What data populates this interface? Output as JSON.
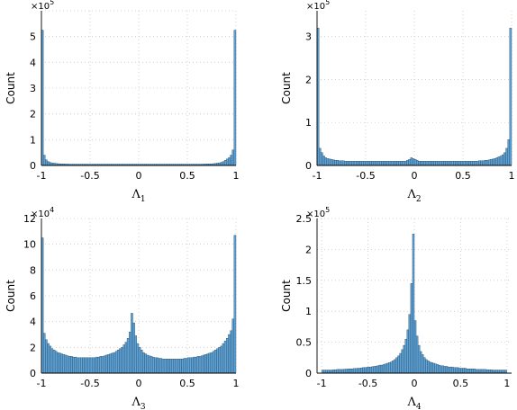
{
  "chart_data": [
    {
      "type": "bar",
      "name": "lambda1",
      "xlabel_main": "Λ",
      "xlabel_sub": "1",
      "ylabel": "Count",
      "multiplier_base": "×10",
      "multiplier_exp": "5",
      "xlim": [
        -1.0,
        1.0
      ],
      "ylim": [
        0,
        6
      ],
      "xticks": [
        -1,
        -0.5,
        0,
        0.5,
        1
      ],
      "xtick_labels": [
        "-1",
        "-0.5",
        "0",
        "0.5",
        "1"
      ],
      "yticks": [
        0,
        1,
        2,
        3,
        4,
        5,
        6
      ],
      "ytick_labels": [
        "0",
        "1",
        "2",
        "3",
        "4",
        "5",
        ""
      ],
      "grid": true,
      "bin_centers": [
        -0.99,
        -0.97,
        -0.95,
        -0.93,
        -0.91,
        -0.89,
        -0.87,
        -0.85,
        -0.83,
        -0.81,
        -0.79,
        -0.77,
        -0.75,
        -0.73,
        -0.71,
        -0.69,
        -0.67,
        -0.65,
        -0.63,
        -0.61,
        -0.59,
        -0.57,
        -0.55,
        -0.53,
        -0.51,
        -0.49,
        -0.47,
        -0.45,
        -0.43,
        -0.41,
        -0.39,
        -0.37,
        -0.35,
        -0.33,
        -0.31,
        -0.29,
        -0.27,
        -0.25,
        -0.23,
        -0.21,
        -0.19,
        -0.17,
        -0.15,
        -0.13,
        -0.11,
        -0.09,
        -0.07,
        -0.05,
        -0.03,
        -0.01,
        0.01,
        0.03,
        0.05,
        0.07,
        0.09,
        0.11,
        0.13,
        0.15,
        0.17,
        0.19,
        0.21,
        0.23,
        0.25,
        0.27,
        0.29,
        0.31,
        0.33,
        0.35,
        0.37,
        0.39,
        0.41,
        0.43,
        0.45,
        0.47,
        0.49,
        0.51,
        0.53,
        0.55,
        0.57,
        0.59,
        0.61,
        0.63,
        0.65,
        0.67,
        0.69,
        0.71,
        0.73,
        0.75,
        0.77,
        0.79,
        0.81,
        0.83,
        0.85,
        0.87,
        0.89,
        0.91,
        0.93,
        0.95,
        0.97,
        0.99
      ],
      "values": [
        5.25,
        0.4,
        0.22,
        0.15,
        0.12,
        0.1,
        0.09,
        0.08,
        0.07,
        0.065,
        0.06,
        0.06,
        0.055,
        0.055,
        0.05,
        0.05,
        0.05,
        0.05,
        0.05,
        0.05,
        0.05,
        0.05,
        0.05,
        0.05,
        0.05,
        0.05,
        0.05,
        0.05,
        0.05,
        0.05,
        0.05,
        0.05,
        0.05,
        0.05,
        0.05,
        0.05,
        0.05,
        0.05,
        0.05,
        0.05,
        0.05,
        0.05,
        0.05,
        0.05,
        0.05,
        0.05,
        0.05,
        0.05,
        0.05,
        0.05,
        0.05,
        0.05,
        0.05,
        0.05,
        0.05,
        0.05,
        0.05,
        0.05,
        0.05,
        0.05,
        0.05,
        0.05,
        0.05,
        0.05,
        0.05,
        0.05,
        0.05,
        0.05,
        0.05,
        0.05,
        0.05,
        0.05,
        0.05,
        0.05,
        0.05,
        0.05,
        0.05,
        0.05,
        0.05,
        0.05,
        0.05,
        0.05,
        0.05,
        0.055,
        0.055,
        0.06,
        0.06,
        0.065,
        0.07,
        0.08,
        0.09,
        0.1,
        0.12,
        0.15,
        0.2,
        0.25,
        0.3,
        0.4,
        0.6,
        5.25
      ]
    },
    {
      "type": "bar",
      "name": "lambda2",
      "xlabel_main": "Λ",
      "xlabel_sub": "2",
      "ylabel": "Count",
      "multiplier_base": "×10",
      "multiplier_exp": "5",
      "xlim": [
        -1.0,
        1.0
      ],
      "ylim": [
        0,
        3.6
      ],
      "xticks": [
        -1,
        -0.5,
        0,
        0.5,
        1
      ],
      "xtick_labels": [
        "-1",
        "-0.5",
        "0",
        "0.5",
        "1"
      ],
      "yticks": [
        0,
        1,
        2,
        3
      ],
      "ytick_labels": [
        "0",
        "1",
        "2",
        "3"
      ],
      "grid": true,
      "bin_centers": [
        -0.99,
        -0.97,
        -0.95,
        -0.93,
        -0.91,
        -0.89,
        -0.87,
        -0.85,
        -0.83,
        -0.81,
        -0.79,
        -0.77,
        -0.75,
        -0.73,
        -0.71,
        -0.69,
        -0.67,
        -0.65,
        -0.63,
        -0.61,
        -0.59,
        -0.57,
        -0.55,
        -0.53,
        -0.51,
        -0.49,
        -0.47,
        -0.45,
        -0.43,
        -0.41,
        -0.39,
        -0.37,
        -0.35,
        -0.33,
        -0.31,
        -0.29,
        -0.27,
        -0.25,
        -0.23,
        -0.21,
        -0.19,
        -0.17,
        -0.15,
        -0.13,
        -0.11,
        -0.09,
        -0.07,
        -0.05,
        -0.03,
        -0.01,
        0.01,
        0.03,
        0.05,
        0.07,
        0.09,
        0.11,
        0.13,
        0.15,
        0.17,
        0.19,
        0.21,
        0.23,
        0.25,
        0.27,
        0.29,
        0.31,
        0.33,
        0.35,
        0.37,
        0.39,
        0.41,
        0.43,
        0.45,
        0.47,
        0.49,
        0.51,
        0.53,
        0.55,
        0.57,
        0.59,
        0.61,
        0.63,
        0.65,
        0.67,
        0.69,
        0.71,
        0.73,
        0.75,
        0.77,
        0.79,
        0.81,
        0.83,
        0.85,
        0.87,
        0.89,
        0.91,
        0.93,
        0.95,
        0.97,
        0.99
      ],
      "values": [
        3.2,
        0.4,
        0.3,
        0.22,
        0.18,
        0.16,
        0.15,
        0.14,
        0.13,
        0.12,
        0.12,
        0.11,
        0.11,
        0.11,
        0.1,
        0.1,
        0.1,
        0.1,
        0.1,
        0.1,
        0.1,
        0.1,
        0.1,
        0.1,
        0.1,
        0.1,
        0.1,
        0.1,
        0.1,
        0.1,
        0.1,
        0.1,
        0.1,
        0.1,
        0.1,
        0.1,
        0.1,
        0.1,
        0.1,
        0.1,
        0.1,
        0.1,
        0.1,
        0.1,
        0.1,
        0.1,
        0.12,
        0.14,
        0.18,
        0.16,
        0.14,
        0.12,
        0.1,
        0.1,
        0.1,
        0.1,
        0.1,
        0.1,
        0.1,
        0.1,
        0.1,
        0.1,
        0.1,
        0.1,
        0.1,
        0.1,
        0.1,
        0.1,
        0.1,
        0.1,
        0.1,
        0.1,
        0.1,
        0.1,
        0.1,
        0.1,
        0.1,
        0.1,
        0.1,
        0.1,
        0.1,
        0.1,
        0.1,
        0.11,
        0.11,
        0.11,
        0.12,
        0.12,
        0.13,
        0.14,
        0.15,
        0.16,
        0.18,
        0.2,
        0.22,
        0.25,
        0.3,
        0.4,
        0.6,
        3.2
      ]
    },
    {
      "type": "bar",
      "name": "lambda3",
      "xlabel_main": "Λ",
      "xlabel_sub": "3",
      "ylabel": "Count",
      "multiplier_base": "×10",
      "multiplier_exp": "4",
      "xlim": [
        -1.0,
        1.0
      ],
      "ylim": [
        0,
        12
      ],
      "xticks": [
        -1,
        -0.5,
        0,
        0.5,
        1
      ],
      "xtick_labels": [
        "-1",
        "-0.5",
        "0",
        "0.5",
        "1"
      ],
      "yticks": [
        0,
        2,
        4,
        6,
        8,
        10,
        12
      ],
      "ytick_labels": [
        "0",
        "2",
        "4",
        "6",
        "8",
        "10",
        "12"
      ],
      "grid": true,
      "bin_centers": [
        -0.99,
        -0.97,
        -0.95,
        -0.93,
        -0.91,
        -0.89,
        -0.87,
        -0.85,
        -0.83,
        -0.81,
        -0.79,
        -0.77,
        -0.75,
        -0.73,
        -0.71,
        -0.69,
        -0.67,
        -0.65,
        -0.63,
        -0.61,
        -0.59,
        -0.57,
        -0.55,
        -0.53,
        -0.51,
        -0.49,
        -0.47,
        -0.45,
        -0.43,
        -0.41,
        -0.39,
        -0.37,
        -0.35,
        -0.33,
        -0.31,
        -0.29,
        -0.27,
        -0.25,
        -0.23,
        -0.21,
        -0.19,
        -0.17,
        -0.15,
        -0.13,
        -0.11,
        -0.09,
        -0.07,
        -0.05,
        -0.03,
        -0.01,
        0.01,
        0.03,
        0.05,
        0.07,
        0.09,
        0.11,
        0.13,
        0.15,
        0.17,
        0.19,
        0.21,
        0.23,
        0.25,
        0.27,
        0.29,
        0.31,
        0.33,
        0.35,
        0.37,
        0.39,
        0.41,
        0.43,
        0.45,
        0.47,
        0.49,
        0.51,
        0.53,
        0.55,
        0.57,
        0.59,
        0.61,
        0.63,
        0.65,
        0.67,
        0.69,
        0.71,
        0.73,
        0.75,
        0.77,
        0.79,
        0.81,
        0.83,
        0.85,
        0.87,
        0.89,
        0.91,
        0.93,
        0.95,
        0.97,
        0.99
      ],
      "values": [
        10.5,
        3.1,
        2.6,
        2.3,
        2.1,
        1.9,
        1.8,
        1.7,
        1.6,
        1.55,
        1.5,
        1.45,
        1.4,
        1.35,
        1.3,
        1.3,
        1.25,
        1.25,
        1.2,
        1.2,
        1.2,
        1.2,
        1.2,
        1.2,
        1.2,
        1.2,
        1.2,
        1.2,
        1.25,
        1.25,
        1.3,
        1.3,
        1.35,
        1.4,
        1.45,
        1.5,
        1.55,
        1.6,
        1.7,
        1.8,
        1.9,
        2.0,
        2.2,
        2.4,
        2.7,
        3.2,
        4.65,
        3.9,
        2.9,
        2.3,
        2.0,
        1.8,
        1.6,
        1.5,
        1.4,
        1.35,
        1.3,
        1.25,
        1.2,
        1.2,
        1.15,
        1.15,
        1.1,
        1.1,
        1.1,
        1.1,
        1.1,
        1.1,
        1.1,
        1.1,
        1.1,
        1.1,
        1.1,
        1.15,
        1.15,
        1.2,
        1.2,
        1.2,
        1.25,
        1.25,
        1.3,
        1.3,
        1.35,
        1.4,
        1.45,
        1.5,
        1.55,
        1.6,
        1.7,
        1.8,
        1.9,
        2.0,
        2.1,
        2.3,
        2.5,
        2.7,
        3.0,
        3.3,
        4.2,
        10.7
      ]
    },
    {
      "type": "bar",
      "name": "lambda4",
      "xlabel_main": "Λ",
      "xlabel_sub": "4",
      "ylabel": "Count",
      "multiplier_base": "×10",
      "multiplier_exp": "5",
      "xlim": [
        -1.05,
        1.05
      ],
      "ylim": [
        0,
        2.5
      ],
      "xticks": [
        -1,
        -0.5,
        0,
        0.5,
        1
      ],
      "xtick_labels": [
        "-1",
        "-0.5",
        "0",
        "0.5",
        "1"
      ],
      "yticks": [
        0,
        0.5,
        1,
        1.5,
        2,
        2.5
      ],
      "ytick_labels": [
        "0",
        "0.5",
        "1",
        "1.5",
        "2",
        "2.5"
      ],
      "grid": true,
      "bin_centers": [
        -0.99,
        -0.97,
        -0.95,
        -0.93,
        -0.91,
        -0.89,
        -0.87,
        -0.85,
        -0.83,
        -0.81,
        -0.79,
        -0.77,
        -0.75,
        -0.73,
        -0.71,
        -0.69,
        -0.67,
        -0.65,
        -0.63,
        -0.61,
        -0.59,
        -0.57,
        -0.55,
        -0.53,
        -0.51,
        -0.49,
        -0.47,
        -0.45,
        -0.43,
        -0.41,
        -0.39,
        -0.37,
        -0.35,
        -0.33,
        -0.31,
        -0.29,
        -0.27,
        -0.25,
        -0.23,
        -0.21,
        -0.19,
        -0.17,
        -0.15,
        -0.13,
        -0.11,
        -0.09,
        -0.07,
        -0.05,
        -0.03,
        -0.01,
        0.01,
        0.03,
        0.05,
        0.07,
        0.09,
        0.11,
        0.13,
        0.15,
        0.17,
        0.19,
        0.21,
        0.23,
        0.25,
        0.27,
        0.29,
        0.31,
        0.33,
        0.35,
        0.37,
        0.39,
        0.41,
        0.43,
        0.45,
        0.47,
        0.49,
        0.51,
        0.53,
        0.55,
        0.57,
        0.59,
        0.61,
        0.63,
        0.65,
        0.67,
        0.69,
        0.71,
        0.73,
        0.75,
        0.77,
        0.79,
        0.81,
        0.83,
        0.85,
        0.87,
        0.89,
        0.91,
        0.93,
        0.95,
        0.97,
        0.99
      ],
      "values": [
        0.05,
        0.05,
        0.05,
        0.05,
        0.05,
        0.05,
        0.055,
        0.055,
        0.06,
        0.06,
        0.06,
        0.06,
        0.065,
        0.065,
        0.07,
        0.07,
        0.07,
        0.075,
        0.075,
        0.08,
        0.08,
        0.085,
        0.09,
        0.09,
        0.095,
        0.1,
        0.1,
        0.105,
        0.11,
        0.115,
        0.12,
        0.13,
        0.13,
        0.14,
        0.15,
        0.16,
        0.17,
        0.18,
        0.2,
        0.22,
        0.25,
        0.28,
        0.32,
        0.38,
        0.45,
        0.55,
        0.7,
        0.95,
        1.45,
        2.25,
        0.85,
        0.6,
        0.45,
        0.35,
        0.3,
        0.25,
        0.22,
        0.2,
        0.18,
        0.17,
        0.16,
        0.15,
        0.14,
        0.13,
        0.12,
        0.12,
        0.11,
        0.11,
        0.1,
        0.1,
        0.1,
        0.09,
        0.09,
        0.09,
        0.08,
        0.08,
        0.08,
        0.08,
        0.07,
        0.07,
        0.07,
        0.07,
        0.07,
        0.06,
        0.06,
        0.06,
        0.06,
        0.06,
        0.06,
        0.055,
        0.055,
        0.055,
        0.05,
        0.05,
        0.05,
        0.05,
        0.05,
        0.05,
        0.05,
        0.05
      ]
    }
  ]
}
